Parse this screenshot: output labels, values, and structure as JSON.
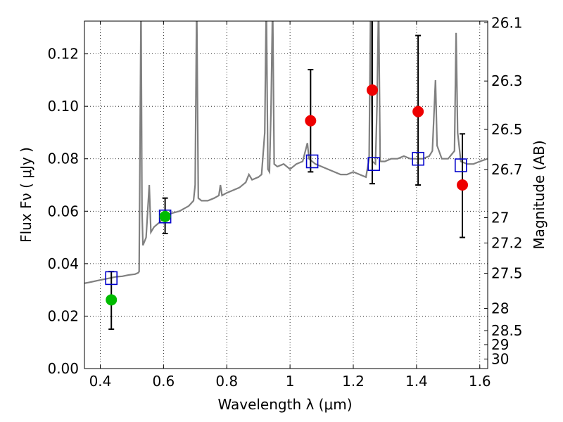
{
  "chart_data": {
    "type": "scatter",
    "xlabel": "Wavelength  λ (μm)",
    "ylabel": "Flux  Fν  ( μJy )",
    "ylabel_right": "Magnitude (AB)",
    "xlim": [
      0.35,
      1.625
    ],
    "ylim": [
      0.0,
      0.1325
    ],
    "grid": true,
    "x_ticks": [
      {
        "v": 0.4,
        "label": "0.4"
      },
      {
        "v": 0.6,
        "label": "0.6"
      },
      {
        "v": 0.8,
        "label": "0.8"
      },
      {
        "v": 1.0,
        "label": "1"
      },
      {
        "v": 1.2,
        "label": "1.2"
      },
      {
        "v": 1.4,
        "label": "1.4"
      },
      {
        "v": 1.6,
        "label": "1.6"
      }
    ],
    "y_ticks": [
      {
        "v": 0.0,
        "label": "0.00"
      },
      {
        "v": 0.02,
        "label": "0.02"
      },
      {
        "v": 0.04,
        "label": "0.04"
      },
      {
        "v": 0.06,
        "label": "0.06"
      },
      {
        "v": 0.08,
        "label": "0.08"
      },
      {
        "v": 0.1,
        "label": "0.10"
      },
      {
        "v": 0.12,
        "label": "0.12"
      }
    ],
    "magnitude_ticks": [
      {
        "mag": 26.1,
        "label": "26.1"
      },
      {
        "mag": 26.3,
        "label": "26.3"
      },
      {
        "mag": 26.5,
        "label": "26.5"
      },
      {
        "mag": 26.7,
        "label": "26.7"
      },
      {
        "mag": 27.0,
        "label": "27"
      },
      {
        "mag": 27.2,
        "label": "27.2"
      },
      {
        "mag": 27.5,
        "label": "27.5"
      },
      {
        "mag": 28.0,
        "label": "28"
      },
      {
        "mag": 28.5,
        "label": "28.5"
      },
      {
        "mag": 29.0,
        "label": "29"
      },
      {
        "mag": 30.0,
        "label": "30"
      }
    ],
    "series": [
      {
        "kind": "spectrum_line",
        "color": "#808080",
        "points": [
          [
            0.35,
            0.0325
          ],
          [
            0.37,
            0.033
          ],
          [
            0.39,
            0.0335
          ],
          [
            0.41,
            0.034
          ],
          [
            0.43,
            0.0345
          ],
          [
            0.45,
            0.035
          ],
          [
            0.47,
            0.0352
          ],
          [
            0.49,
            0.0357
          ],
          [
            0.51,
            0.036
          ],
          [
            0.52,
            0.0365
          ],
          [
            0.523,
            0.037
          ],
          [
            0.526,
            0.09
          ],
          [
            0.529,
            0.14
          ],
          [
            0.532,
            0.06
          ],
          [
            0.535,
            0.047
          ],
          [
            0.545,
            0.05
          ],
          [
            0.555,
            0.07
          ],
          [
            0.56,
            0.052
          ],
          [
            0.57,
            0.054
          ],
          [
            0.58,
            0.055
          ],
          [
            0.59,
            0.056
          ],
          [
            0.6,
            0.058
          ],
          [
            0.62,
            0.059
          ],
          [
            0.65,
            0.06
          ],
          [
            0.68,
            0.062
          ],
          [
            0.695,
            0.064
          ],
          [
            0.7,
            0.07
          ],
          [
            0.705,
            0.14
          ],
          [
            0.71,
            0.065
          ],
          [
            0.72,
            0.064
          ],
          [
            0.74,
            0.064
          ],
          [
            0.76,
            0.065
          ],
          [
            0.775,
            0.066
          ],
          [
            0.78,
            0.07
          ],
          [
            0.785,
            0.066
          ],
          [
            0.8,
            0.067
          ],
          [
            0.82,
            0.068
          ],
          [
            0.84,
            0.069
          ],
          [
            0.86,
            0.071
          ],
          [
            0.87,
            0.074
          ],
          [
            0.88,
            0.072
          ],
          [
            0.9,
            0.073
          ],
          [
            0.91,
            0.074
          ],
          [
            0.92,
            0.09
          ],
          [
            0.925,
            0.14
          ],
          [
            0.93,
            0.076
          ],
          [
            0.935,
            0.075
          ],
          [
            0.94,
            0.1
          ],
          [
            0.945,
            0.14
          ],
          [
            0.95,
            0.078
          ],
          [
            0.96,
            0.077
          ],
          [
            0.98,
            0.078
          ],
          [
            1.0,
            0.076
          ],
          [
            1.02,
            0.078
          ],
          [
            1.04,
            0.079
          ],
          [
            1.055,
            0.086
          ],
          [
            1.06,
            0.08
          ],
          [
            1.08,
            0.078
          ],
          [
            1.1,
            0.077
          ],
          [
            1.12,
            0.076
          ],
          [
            1.14,
            0.075
          ],
          [
            1.16,
            0.074
          ],
          [
            1.18,
            0.074
          ],
          [
            1.2,
            0.075
          ],
          [
            1.22,
            0.074
          ],
          [
            1.24,
            0.073
          ],
          [
            1.25,
            0.08
          ],
          [
            1.255,
            0.14
          ],
          [
            1.26,
            0.079
          ],
          [
            1.27,
            0.078
          ],
          [
            1.275,
            0.1
          ],
          [
            1.28,
            0.14
          ],
          [
            1.285,
            0.079
          ],
          [
            1.3,
            0.079
          ],
          [
            1.32,
            0.08
          ],
          [
            1.34,
            0.08
          ],
          [
            1.36,
            0.081
          ],
          [
            1.38,
            0.08
          ],
          [
            1.4,
            0.08
          ],
          [
            1.42,
            0.08
          ],
          [
            1.44,
            0.081
          ],
          [
            1.45,
            0.083
          ],
          [
            1.46,
            0.11
          ],
          [
            1.465,
            0.085
          ],
          [
            1.48,
            0.08
          ],
          [
            1.5,
            0.08
          ],
          [
            1.52,
            0.083
          ],
          [
            1.525,
            0.128
          ],
          [
            1.53,
            0.09
          ],
          [
            1.54,
            0.079
          ],
          [
            1.56,
            0.078
          ],
          [
            1.58,
            0.078
          ],
          [
            1.6,
            0.079
          ],
          [
            1.625,
            0.08
          ]
        ]
      },
      {
        "kind": "model_photometry_squares",
        "color": "#0000cc",
        "points": [
          {
            "x": 0.435,
            "y": 0.0345
          },
          {
            "x": 0.605,
            "y": 0.058
          },
          {
            "x": 1.07,
            "y": 0.079
          },
          {
            "x": 1.265,
            "y": 0.078
          },
          {
            "x": 1.405,
            "y": 0.08
          },
          {
            "x": 1.54,
            "y": 0.0775
          }
        ]
      },
      {
        "kind": "observed_points_green",
        "color": "#00bb00",
        "points": [
          {
            "x": 0.435,
            "y": 0.0262,
            "yerr_low": 0.015,
            "yerr_high": 0.037
          },
          {
            "x": 0.605,
            "y": 0.058,
            "yerr_low": 0.0515,
            "yerr_high": 0.065
          }
        ]
      },
      {
        "kind": "observed_points_red",
        "color": "#ee0000",
        "points": [
          {
            "x": 1.065,
            "y": 0.0945,
            "yerr_low": 0.075,
            "yerr_high": 0.114
          },
          {
            "x": 1.26,
            "y": 0.1062,
            "yerr_low": 0.0705,
            "yerr_high": 0.14
          },
          {
            "x": 1.405,
            "y": 0.098,
            "yerr_low": 0.07,
            "yerr_high": 0.127
          },
          {
            "x": 1.545,
            "y": 0.07,
            "yerr_low": 0.05,
            "yerr_high": 0.0895
          }
        ]
      }
    ]
  }
}
